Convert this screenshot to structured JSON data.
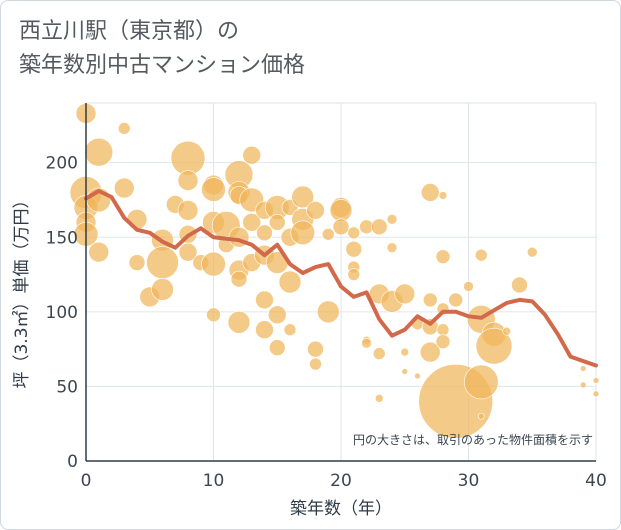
{
  "title_lines": [
    "西立川駅（東京都）の",
    "築年数別中古マンション価格"
  ],
  "chart_data": {
    "type": "scatter",
    "title": "西立川駅（東京都）の 築年数別中古マンション価格",
    "xlabel": "築年数（年）",
    "ylabel": "坪（3.3㎡）単価（万円）",
    "xlim": [
      0,
      40
    ],
    "ylim": [
      0,
      240
    ],
    "xticks": [
      0,
      10,
      20,
      30,
      40
    ],
    "yticks": [
      0,
      50,
      100,
      150,
      200
    ],
    "grid": true,
    "annotation": "円の大きさは、取引のあった物件面積を示す",
    "colors": {
      "bubble": "#f0b65a",
      "line": "#d2694a",
      "grid": "#dfe5ea",
      "axis": "#2f3b47"
    },
    "series": [
      {
        "kind": "bubbles",
        "points": [
          {
            "x": 0,
            "y": 233,
            "s": 10
          },
          {
            "x": 0,
            "y": 180,
            "s": 16
          },
          {
            "x": 0,
            "y": 170,
            "s": 12
          },
          {
            "x": 0,
            "y": 160,
            "s": 10
          },
          {
            "x": 0,
            "y": 152,
            "s": 12
          },
          {
            "x": 1,
            "y": 207,
            "s": 14
          },
          {
            "x": 1,
            "y": 175,
            "s": 12
          },
          {
            "x": 1,
            "y": 140,
            "s": 10
          },
          {
            "x": 3,
            "y": 223,
            "s": 6
          },
          {
            "x": 3,
            "y": 183,
            "s": 10
          },
          {
            "x": 4,
            "y": 162,
            "s": 10
          },
          {
            "x": 4,
            "y": 133,
            "s": 8
          },
          {
            "x": 5,
            "y": 110,
            "s": 10
          },
          {
            "x": 6,
            "y": 148,
            "s": 11
          },
          {
            "x": 6,
            "y": 133,
            "s": 16
          },
          {
            "x": 6,
            "y": 115,
            "s": 11
          },
          {
            "x": 7,
            "y": 172,
            "s": 9
          },
          {
            "x": 8,
            "y": 203,
            "s": 17
          },
          {
            "x": 8,
            "y": 188,
            "s": 10
          },
          {
            "x": 8,
            "y": 168,
            "s": 10
          },
          {
            "x": 8,
            "y": 152,
            "s": 9
          },
          {
            "x": 8,
            "y": 140,
            "s": 9
          },
          {
            "x": 9,
            "y": 133,
            "s": 8
          },
          {
            "x": 10,
            "y": 185,
            "s": 10
          },
          {
            "x": 10,
            "y": 182,
            "s": 12
          },
          {
            "x": 10,
            "y": 160,
            "s": 11
          },
          {
            "x": 10,
            "y": 132,
            "s": 12
          },
          {
            "x": 10,
            "y": 98,
            "s": 7
          },
          {
            "x": 11,
            "y": 158,
            "s": 14
          },
          {
            "x": 11,
            "y": 145,
            "s": 8
          },
          {
            "x": 12,
            "y": 192,
            "s": 14
          },
          {
            "x": 12,
            "y": 180,
            "s": 11
          },
          {
            "x": 12,
            "y": 178,
            "s": 9
          },
          {
            "x": 12,
            "y": 150,
            "s": 10
          },
          {
            "x": 12,
            "y": 128,
            "s": 10
          },
          {
            "x": 12,
            "y": 122,
            "s": 8
          },
          {
            "x": 12,
            "y": 93,
            "s": 11
          },
          {
            "x": 13,
            "y": 205,
            "s": 9
          },
          {
            "x": 13,
            "y": 175,
            "s": 12
          },
          {
            "x": 13,
            "y": 160,
            "s": 9
          },
          {
            "x": 13,
            "y": 133,
            "s": 9
          },
          {
            "x": 14,
            "y": 168,
            "s": 9
          },
          {
            "x": 14,
            "y": 153,
            "s": 8
          },
          {
            "x": 14,
            "y": 138,
            "s": 10
          },
          {
            "x": 14,
            "y": 108,
            "s": 9
          },
          {
            "x": 14,
            "y": 88,
            "s": 9
          },
          {
            "x": 15,
            "y": 170,
            "s": 12
          },
          {
            "x": 15,
            "y": 160,
            "s": 8
          },
          {
            "x": 15,
            "y": 133,
            "s": 11
          },
          {
            "x": 15,
            "y": 98,
            "s": 9
          },
          {
            "x": 15,
            "y": 76,
            "s": 8
          },
          {
            "x": 16,
            "y": 170,
            "s": 8
          },
          {
            "x": 16,
            "y": 150,
            "s": 9
          },
          {
            "x": 16,
            "y": 120,
            "s": 11
          },
          {
            "x": 16,
            "y": 88,
            "s": 6
          },
          {
            "x": 17,
            "y": 177,
            "s": 11
          },
          {
            "x": 17,
            "y": 162,
            "s": 11
          },
          {
            "x": 17,
            "y": 153,
            "s": 12
          },
          {
            "x": 18,
            "y": 168,
            "s": 9
          },
          {
            "x": 18,
            "y": 75,
            "s": 8
          },
          {
            "x": 18,
            "y": 65,
            "s": 6
          },
          {
            "x": 19,
            "y": 152,
            "s": 6
          },
          {
            "x": 19,
            "y": 100,
            "s": 11
          },
          {
            "x": 20,
            "y": 170,
            "s": 10
          },
          {
            "x": 20,
            "y": 168,
            "s": 11
          },
          {
            "x": 20,
            "y": 157,
            "s": 8
          },
          {
            "x": 21,
            "y": 153,
            "s": 6
          },
          {
            "x": 21,
            "y": 142,
            "s": 8
          },
          {
            "x": 21,
            "y": 130,
            "s": 6
          },
          {
            "x": 21,
            "y": 125,
            "s": 6
          },
          {
            "x": 22,
            "y": 157,
            "s": 7
          },
          {
            "x": 22,
            "y": 81,
            "s": 4
          },
          {
            "x": 22,
            "y": 79,
            "s": 5
          },
          {
            "x": 23,
            "y": 157,
            "s": 8
          },
          {
            "x": 23,
            "y": 112,
            "s": 10
          },
          {
            "x": 23,
            "y": 72,
            "s": 6
          },
          {
            "x": 23,
            "y": 42,
            "s": 4
          },
          {
            "x": 24,
            "y": 162,
            "s": 5
          },
          {
            "x": 24,
            "y": 143,
            "s": 5
          },
          {
            "x": 24,
            "y": 107,
            "s": 11
          },
          {
            "x": 25,
            "y": 112,
            "s": 10
          },
          {
            "x": 25,
            "y": 73,
            "s": 4
          },
          {
            "x": 25,
            "y": 60,
            "s": 3
          },
          {
            "x": 26,
            "y": 92,
            "s": 6
          },
          {
            "x": 26,
            "y": 57,
            "s": 3
          },
          {
            "x": 27,
            "y": 180,
            "s": 9
          },
          {
            "x": 27,
            "y": 108,
            "s": 7
          },
          {
            "x": 27,
            "y": 90,
            "s": 8
          },
          {
            "x": 27,
            "y": 73,
            "s": 10
          },
          {
            "x": 28,
            "y": 178,
            "s": 4
          },
          {
            "x": 28,
            "y": 137,
            "s": 7
          },
          {
            "x": 28,
            "y": 102,
            "s": 6
          },
          {
            "x": 28,
            "y": 88,
            "s": 6
          },
          {
            "x": 28,
            "y": 80,
            "s": 7
          },
          {
            "x": 29,
            "y": 108,
            "s": 7
          },
          {
            "x": 29,
            "y": 40,
            "s": 37
          },
          {
            "x": 30,
            "y": 117,
            "s": 5
          },
          {
            "x": 31,
            "y": 138,
            "s": 6
          },
          {
            "x": 31,
            "y": 95,
            "s": 14
          },
          {
            "x": 31,
            "y": 53,
            "s": 17
          },
          {
            "x": 31,
            "y": 30,
            "s": 3
          },
          {
            "x": 32,
            "y": 85,
            "s": 12
          },
          {
            "x": 32,
            "y": 77,
            "s": 18
          },
          {
            "x": 33,
            "y": 87,
            "s": 4
          },
          {
            "x": 34,
            "y": 118,
            "s": 8
          },
          {
            "x": 35,
            "y": 140,
            "s": 5
          },
          {
            "x": 39,
            "y": 62,
            "s": 3
          },
          {
            "x": 39,
            "y": 51,
            "s": 3
          },
          {
            "x": 40,
            "y": 54,
            "s": 3
          },
          {
            "x": 40,
            "y": 45,
            "s": 3
          }
        ]
      },
      {
        "kind": "line",
        "x": [
          0,
          1,
          2,
          3,
          4,
          5,
          6,
          7,
          8,
          9,
          10,
          11,
          12,
          13,
          14,
          15,
          16,
          17,
          18,
          19,
          20,
          21,
          22,
          23,
          24,
          25,
          26,
          27,
          28,
          29,
          30,
          31,
          32,
          33,
          34,
          35,
          36,
          37,
          38,
          39,
          40
        ],
        "y": [
          176,
          181,
          177,
          163,
          155,
          153,
          147,
          143,
          151,
          156,
          150,
          149,
          148,
          145,
          138,
          145,
          132,
          126,
          130,
          132,
          117,
          110,
          113,
          95,
          84,
          88,
          97,
          92,
          100,
          100,
          97,
          96,
          101,
          106,
          108,
          107,
          98,
          85,
          70,
          67,
          64
        ]
      }
    ]
  }
}
